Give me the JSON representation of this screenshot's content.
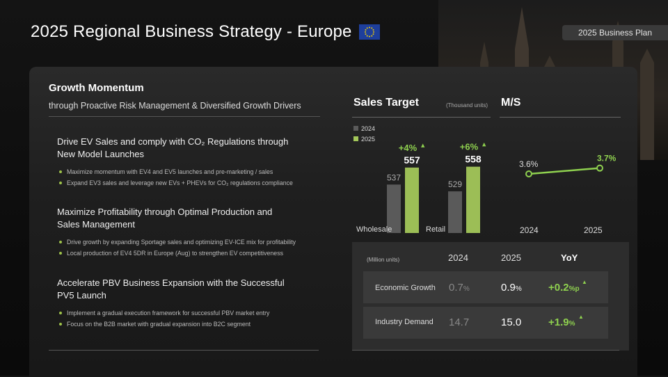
{
  "header": {
    "title": "2025 Regional Business Strategy - Europe",
    "badge": "2025 Business Plan"
  },
  "growth": {
    "title": "Growth Momentum",
    "subtitle": "through Proactive Risk Management & Diversified Growth Drivers"
  },
  "strategies": [
    {
      "title_line1": "Drive EV Sales and comply with CO₂ Regulations through",
      "title_line2": "New Model Launches",
      "bullets": [
        "Maximize momentum with EV4 and EV5 launches and pre-marketing / sales",
        "Expand EV3 sales and leverage new EVs + PHEVs for CO₂ regulations compliance"
      ]
    },
    {
      "title_line1": "Maximize Profitability through Optimal Production and",
      "title_line2": "Sales Management",
      "bullets": [
        "Drive growth by expanding Sportage sales and optimizing EV-ICE mix for profitability",
        "Local production of EV4 5DR in Europe (Aug) to strengthen EV competitiveness"
      ]
    },
    {
      "title_line1": "Accelerate PBV Business Expansion with the Successful",
      "title_line2": "PV5 Launch",
      "bullets": [
        "Implement a gradual execution framework for successful PBV market entry",
        "Focus on the B2B market with gradual expansion into B2C segment"
      ]
    }
  ],
  "sales_target": {
    "title": "Sales Target",
    "units": "(Thousand units)"
  },
  "ms": {
    "title": "M/S"
  },
  "chart_data": [
    {
      "type": "bar",
      "categories": [
        "Wholesale",
        "Retail"
      ],
      "series": [
        {
          "name": "2024",
          "values": [
            537,
            529
          ],
          "color": "#5a5a5a"
        },
        {
          "name": "2025",
          "values": [
            557,
            558
          ],
          "color": "#a3c75a"
        }
      ],
      "growth_labels": [
        "+4%",
        "+6%"
      ],
      "legend_position": "top-left"
    },
    {
      "type": "line",
      "x": [
        "2024",
        "2025"
      ],
      "series": [
        {
          "name": "M/S",
          "values": [
            3.6,
            3.7
          ],
          "labels": [
            "3.6%",
            "3.7%"
          ],
          "color": "#8fd14f"
        }
      ]
    }
  ],
  "table": {
    "units": "(Million units)",
    "headers": [
      "2024",
      "2025",
      "YoY"
    ],
    "rows": [
      {
        "label": "Economic Growth",
        "v2024": "0.7",
        "v2024_unit": "%",
        "v2025": "0.9",
        "v2025_unit": "%",
        "yoy": "+0.2",
        "yoy_unit": "%p"
      },
      {
        "label": "Industry Demand",
        "v2024": "14.7",
        "v2024_unit": "",
        "v2025": "15.0",
        "v2025_unit": "",
        "yoy": "+1.9",
        "yoy_unit": "%"
      }
    ]
  },
  "colors": {
    "accent": "#8fd14f",
    "bar2024": "#5a5a5a",
    "bar2025": "#a3c75a"
  },
  "icons": {
    "flag": "eu-flag-icon",
    "arrow": "up-arrow-icon"
  }
}
